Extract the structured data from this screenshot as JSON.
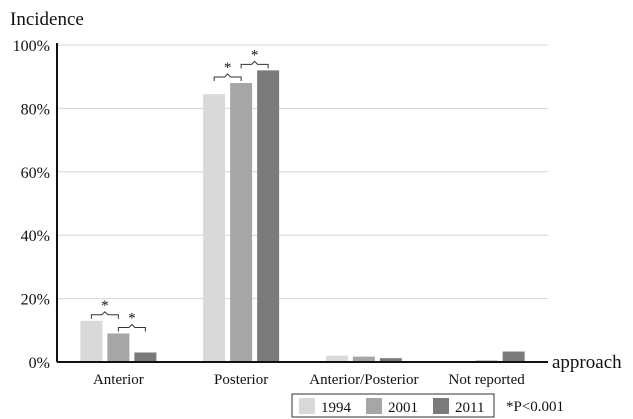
{
  "chart_data": {
    "type": "bar",
    "ylabel": "Incidence",
    "xlabel": "approach",
    "ylim": [
      0,
      100
    ],
    "yticks": [
      "0%",
      "20%",
      "40%",
      "60%",
      "80%",
      "100%"
    ],
    "grid": true,
    "legend_position": "bottom-right",
    "categories": [
      "Anterior",
      "Posterior",
      "Anterior/Posterior",
      "Not reported"
    ],
    "series": [
      {
        "name": "1994",
        "color": "#d9d9d9",
        "values": [
          13,
          84.5,
          2,
          0
        ]
      },
      {
        "name": "2001",
        "color": "#a6a6a6",
        "values": [
          9,
          88,
          1.7,
          0.5
        ]
      },
      {
        "name": "2011",
        "color": "#7a7a7a",
        "values": [
          3,
          92,
          1.2,
          3.3
        ]
      }
    ],
    "significance": [
      {
        "category_index": 0,
        "between": [
          "1994",
          "2001"
        ],
        "label": "*"
      },
      {
        "category_index": 0,
        "between": [
          "2001",
          "2011"
        ],
        "label": "*"
      },
      {
        "category_index": 1,
        "between": [
          "1994",
          "2001"
        ],
        "label": "*"
      },
      {
        "category_index": 1,
        "between": [
          "2001",
          "2011"
        ],
        "label": "*"
      }
    ],
    "footnote": "*P<0.001"
  }
}
